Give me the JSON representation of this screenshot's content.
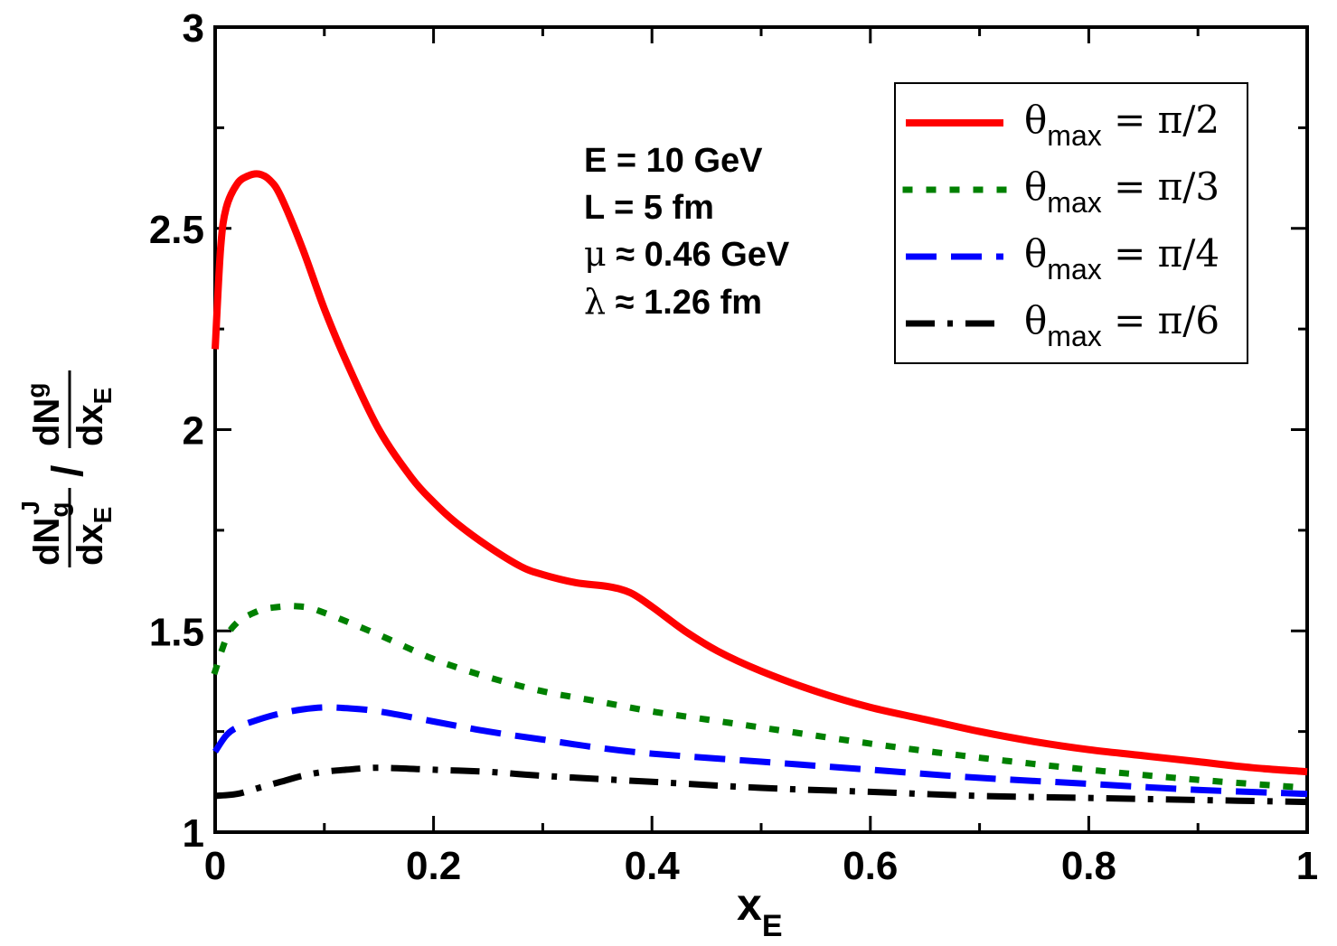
{
  "chart_data": {
    "type": "line",
    "xlabel": "x",
    "xlabel_sub": "E",
    "ylabel": {
      "num_main": "dN",
      "num_sup": "J",
      "num_sub": "g",
      "den_main": "dx",
      "den_sub": "E",
      "slash": "/",
      "num2_main": "dN",
      "num2_sub": "g",
      "den2_main": "dx",
      "den2_sub": "E"
    },
    "xlim": [
      0,
      1
    ],
    "ylim": [
      1,
      3
    ],
    "xticks": [
      0,
      0.2,
      0.4,
      0.6,
      0.8,
      1
    ],
    "xtick_labels": [
      "0",
      "0.2",
      "0.4",
      "0.6",
      "0.8",
      "1"
    ],
    "yticks": [
      1,
      1.5,
      2,
      2.5,
      3
    ],
    "ytick_labels": [
      "1",
      "1.5",
      "2",
      "2.5",
      "3"
    ],
    "annotations": [
      {
        "sym": "",
        "text": "E = 10 GeV"
      },
      {
        "sym": "",
        "text": "L = 5 fm"
      },
      {
        "sym": "μ",
        "text": " ≈ 0.46 GeV"
      },
      {
        "sym": "λ",
        "text": " ≈ 1.26 fm"
      }
    ],
    "legend_position": "top-right",
    "series": [
      {
        "name": "θ",
        "name_sub": "max",
        "name_rest": " = π/2",
        "color": "#ff0000",
        "style": "solid",
        "x": [
          0.0,
          0.005,
          0.01,
          0.02,
          0.03,
          0.04,
          0.05,
          0.06,
          0.08,
          0.1,
          0.12,
          0.15,
          0.18,
          0.2,
          0.22,
          0.25,
          0.28,
          0.3,
          0.33,
          0.36,
          0.38,
          0.4,
          0.43,
          0.46,
          0.5,
          0.55,
          0.6,
          0.65,
          0.7,
          0.75,
          0.8,
          0.85,
          0.9,
          0.95,
          1.0
        ],
        "y": [
          2.2,
          2.45,
          2.55,
          2.61,
          2.63,
          2.635,
          2.62,
          2.58,
          2.45,
          2.3,
          2.17,
          2.0,
          1.88,
          1.82,
          1.77,
          1.71,
          1.66,
          1.64,
          1.62,
          1.61,
          1.595,
          1.56,
          1.5,
          1.45,
          1.4,
          1.35,
          1.31,
          1.28,
          1.25,
          1.225,
          1.205,
          1.19,
          1.175,
          1.16,
          1.15
        ]
      },
      {
        "name": "θ",
        "name_sub": "max",
        "name_rest": " = π/3",
        "color": "#008000",
        "style": "dotted",
        "x": [
          0.0,
          0.01,
          0.02,
          0.04,
          0.06,
          0.08,
          0.1,
          0.15,
          0.2,
          0.25,
          0.3,
          0.35,
          0.4,
          0.45,
          0.5,
          0.6,
          0.7,
          0.8,
          0.9,
          1.0
        ],
        "y": [
          1.4,
          1.48,
          1.52,
          1.55,
          1.56,
          1.56,
          1.545,
          1.49,
          1.43,
          1.385,
          1.35,
          1.325,
          1.3,
          1.28,
          1.26,
          1.22,
          1.185,
          1.155,
          1.13,
          1.11
        ]
      },
      {
        "name": "θ",
        "name_sub": "max",
        "name_rest": " = π/4",
        "color": "#0000ff",
        "style": "dashed",
        "x": [
          0.0,
          0.01,
          0.02,
          0.04,
          0.06,
          0.08,
          0.1,
          0.12,
          0.15,
          0.2,
          0.25,
          0.3,
          0.35,
          0.4,
          0.5,
          0.6,
          0.7,
          0.8,
          0.9,
          1.0
        ],
        "y": [
          1.2,
          1.24,
          1.26,
          1.28,
          1.295,
          1.305,
          1.31,
          1.308,
          1.3,
          1.275,
          1.25,
          1.23,
          1.21,
          1.195,
          1.175,
          1.155,
          1.135,
          1.12,
          1.105,
          1.095
        ]
      },
      {
        "name": "θ",
        "name_sub": "max",
        "name_rest": " = π/6",
        "color": "#000000",
        "style": "dashdot",
        "x": [
          0.0,
          0.02,
          0.04,
          0.06,
          0.08,
          0.1,
          0.12,
          0.15,
          0.2,
          0.25,
          0.3,
          0.4,
          0.5,
          0.6,
          0.7,
          0.8,
          0.9,
          1.0
        ],
        "y": [
          1.09,
          1.095,
          1.11,
          1.125,
          1.14,
          1.15,
          1.155,
          1.16,
          1.155,
          1.15,
          1.14,
          1.125,
          1.11,
          1.1,
          1.09,
          1.085,
          1.08,
          1.075
        ]
      }
    ]
  }
}
